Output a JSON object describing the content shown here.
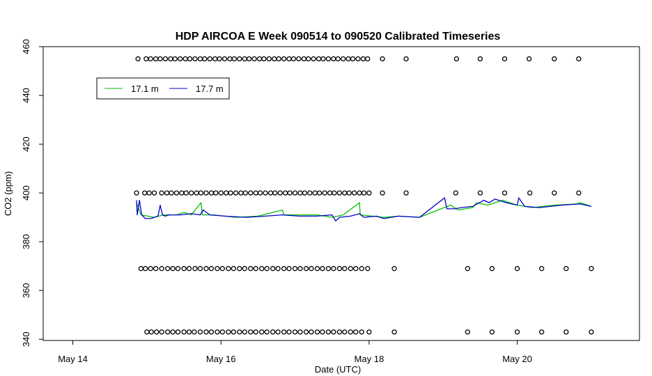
{
  "chart_data": {
    "type": "line",
    "title": "HDP AIRCOA E  Week 090514 to 090520  Calibrated Timeseries",
    "xlabel": "Date (UTC)",
    "ylabel": "CO2 (ppm)",
    "x_unit": "days (May 2009)",
    "xlim": [
      13.6,
      21.65
    ],
    "ylim": [
      339.5,
      460
    ],
    "x_ticks": [
      {
        "value": 14,
        "label": "May 14"
      },
      {
        "value": 16,
        "label": "May 16"
      },
      {
        "value": 18,
        "label": "May 18"
      },
      {
        "value": 20,
        "label": "May 20"
      }
    ],
    "y_ticks": [
      {
        "value": 340,
        "label": "340"
      },
      {
        "value": 360,
        "label": "360"
      },
      {
        "value": 380,
        "label": "380"
      },
      {
        "value": 400,
        "label": "400"
      },
      {
        "value": 420,
        "label": "420"
      },
      {
        "value": 440,
        "label": "440"
      },
      {
        "value": 460,
        "label": "460"
      }
    ],
    "legend": {
      "position": "top-left",
      "entries": [
        {
          "label": "17.1 m",
          "color": "#00c000"
        },
        {
          "label": "17.7 m",
          "color": "#0000cc"
        }
      ]
    },
    "series": [
      {
        "name": "17.1 m",
        "color": "#00c000",
        "x": [
          14.86,
          14.92,
          15.1,
          15.22,
          15.4,
          15.5,
          15.6,
          15.73,
          15.75,
          15.9,
          16.2,
          16.5,
          16.83,
          16.85,
          17.0,
          17.3,
          17.5,
          17.65,
          17.87,
          17.88,
          18.2,
          18.4,
          18.68,
          19.1,
          19.2,
          19.4,
          19.45,
          19.6,
          19.8,
          20.0,
          20.2,
          20.5,
          20.8,
          20.85,
          21.0
        ],
        "y": [
          396,
          391,
          390,
          391,
          391,
          392,
          391,
          396,
          391,
          391,
          390,
          390.5,
          393,
          391,
          391,
          391,
          390,
          391,
          396,
          391,
          390,
          390.5,
          390,
          395,
          393,
          394,
          396,
          395,
          397,
          395,
          394,
          395,
          395.5,
          396,
          394.5
        ]
      },
      {
        "name": "17.7 m",
        "color": "#0000cc",
        "x": [
          14.86,
          14.87,
          14.9,
          14.93,
          14.98,
          15.05,
          15.1,
          15.15,
          15.18,
          15.21,
          15.25,
          15.3,
          15.45,
          15.6,
          15.72,
          15.76,
          15.85,
          16.05,
          16.35,
          16.6,
          16.83,
          17.05,
          17.3,
          17.5,
          17.55,
          17.6,
          17.75,
          17.87,
          17.93,
          18.1,
          18.2,
          18.4,
          18.68,
          19.02,
          19.05,
          19.15,
          19.25,
          19.4,
          19.55,
          19.62,
          19.7,
          19.85,
          20.0,
          20.02,
          20.1,
          20.3,
          20.6,
          20.85,
          21.0
        ],
        "y": [
          397,
          391,
          397,
          391,
          389.5,
          389.5,
          390,
          390.5,
          395,
          391,
          390.5,
          391,
          391,
          391.5,
          391,
          393,
          391,
          390.5,
          390,
          390.5,
          391,
          390.5,
          390.5,
          391,
          388.5,
          390,
          390.5,
          391.5,
          390,
          390.5,
          389.5,
          390.5,
          390,
          398,
          393.5,
          393.5,
          394,
          394.5,
          397,
          396,
          397.5,
          396,
          395,
          398,
          394.5,
          394,
          395,
          395.5,
          394.5
        ]
      }
    ],
    "reference_points": {
      "marker": "open-circle",
      "levels": [
        {
          "y": 455,
          "x": [
            14.88,
            14.99,
            15.05,
            15.12,
            15.18,
            15.25,
            15.32,
            15.38,
            15.45,
            15.52,
            15.58,
            15.65,
            15.72,
            15.78,
            15.85,
            15.92,
            15.98,
            16.05,
            16.12,
            16.18,
            16.25,
            16.32,
            16.38,
            16.45,
            16.52,
            16.58,
            16.65,
            16.72,
            16.78,
            16.85,
            16.92,
            16.98,
            17.05,
            17.12,
            17.18,
            17.25,
            17.32,
            17.38,
            17.45,
            17.52,
            17.58,
            17.65,
            17.72,
            17.78,
            17.85,
            17.92,
            17.98,
            18.18,
            18.5,
            19.18,
            19.5,
            19.83,
            20.16,
            20.5,
            20.83
          ]
        },
        {
          "y": 400,
          "x": [
            14.86,
            14.97,
            15.03,
            15.1,
            15.2,
            15.27,
            15.33,
            15.4,
            15.47,
            15.53,
            15.6,
            15.67,
            15.73,
            15.8,
            15.87,
            15.93,
            16.0,
            16.07,
            16.13,
            16.2,
            16.27,
            16.33,
            16.4,
            16.47,
            16.53,
            16.6,
            16.67,
            16.73,
            16.8,
            16.87,
            16.93,
            17.0,
            17.07,
            17.13,
            17.2,
            17.27,
            17.33,
            17.4,
            17.47,
            17.53,
            17.6,
            17.67,
            17.73,
            17.8,
            17.87,
            17.93,
            18.0,
            18.18,
            18.5,
            19.17,
            19.5,
            19.83,
            20.17,
            20.5,
            20.83
          ]
        },
        {
          "y": 369,
          "x": [
            14.92,
            14.98,
            15.05,
            15.12,
            15.2,
            15.28,
            15.35,
            15.42,
            15.5,
            15.57,
            15.65,
            15.72,
            15.8,
            15.87,
            15.95,
            16.02,
            16.1,
            16.17,
            16.25,
            16.32,
            16.4,
            16.47,
            16.55,
            16.62,
            16.7,
            16.77,
            16.85,
            16.92,
            17.0,
            17.07,
            17.15,
            17.22,
            17.3,
            17.37,
            17.45,
            17.52,
            17.6,
            17.67,
            17.75,
            17.82,
            17.9,
            17.98,
            18.34,
            19.33,
            19.66,
            20.0,
            20.33,
            20.66,
            21.0
          ]
        },
        {
          "y": 343,
          "x": [
            15.0,
            15.06,
            15.13,
            15.2,
            15.28,
            15.35,
            15.42,
            15.5,
            15.57,
            15.64,
            15.72,
            15.8,
            15.87,
            15.95,
            16.02,
            16.1,
            16.17,
            16.25,
            16.32,
            16.4,
            16.47,
            16.55,
            16.62,
            16.7,
            16.77,
            16.85,
            16.92,
            17.0,
            17.07,
            17.15,
            17.22,
            17.3,
            17.37,
            17.45,
            17.52,
            17.6,
            17.67,
            17.75,
            17.82,
            17.9,
            18.0,
            18.34,
            19.33,
            19.66,
            20.0,
            20.33,
            20.66,
            21.0
          ]
        }
      ]
    }
  }
}
